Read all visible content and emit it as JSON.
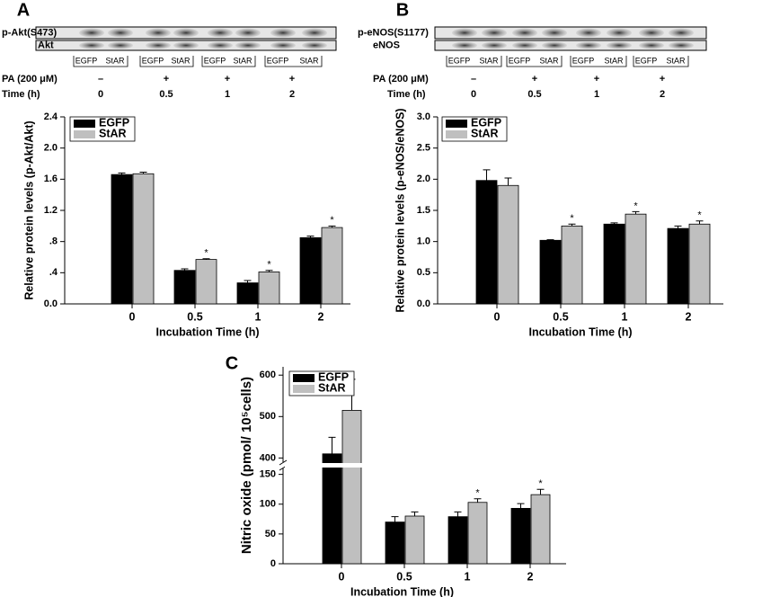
{
  "blots": [
    {
      "panel_label": "A",
      "rows": [
        "p-Akt(S473)",
        "Akt"
      ],
      "lanes": [
        "EGFP",
        "StAR"
      ],
      "pa_label": "PA (200 μM)",
      "time_label": "Time (h)",
      "pa": [
        "–",
        "+",
        "+",
        "+"
      ],
      "times": [
        "0",
        "0.5",
        "1",
        "2"
      ]
    },
    {
      "panel_label": "B",
      "rows": [
        "p-eNOS(S1177)",
        "eNOS"
      ],
      "lanes": [
        "EGFP",
        "StAR"
      ],
      "pa_label": "PA (200 μM)",
      "time_label": "Time (h)",
      "pa": [
        "–",
        "+",
        "+",
        "+"
      ],
      "times": [
        "0",
        "0.5",
        "1",
        "2"
      ]
    }
  ],
  "chart_data": [
    {
      "type": "bar",
      "y_label": "Relative protein levels (p-Akt/Akt)",
      "x_label": "Incubation Time (h)",
      "categories": [
        "0",
        "0.5",
        "1",
        "2"
      ],
      "series": [
        {
          "name": "EGFP",
          "color": "#000000",
          "values": [
            1.66,
            0.43,
            0.27,
            0.85
          ],
          "errors": [
            0.02,
            0.02,
            0.03,
            0.02
          ]
        },
        {
          "name": "StAR",
          "color": "#bfbfbf",
          "values": [
            1.67,
            0.57,
            0.41,
            0.98
          ],
          "errors": [
            0.02,
            0.01,
            0.02,
            0.02
          ],
          "significance": [
            null,
            "*",
            "*",
            "*"
          ]
        }
      ],
      "ylim": [
        0,
        2.4
      ],
      "yticks": [
        {
          "value": 0,
          "label": "0.0"
        },
        {
          "value": 0.4,
          "label": ".4"
        },
        {
          "value": 0.8,
          "label": ".8"
        },
        1.2,
        1.6,
        {
          "value": 2.0,
          "label": "2.0"
        },
        2.4
      ],
      "legend": "upper left"
    },
    {
      "type": "bar",
      "y_label": "Relative protein levels (p-eNOS/eNOS)",
      "x_label": "Incubation Time (h)",
      "categories": [
        "0",
        "0.5",
        "1",
        "2"
      ],
      "series": [
        {
          "name": "EGFP",
          "color": "#000000",
          "values": [
            1.98,
            1.02,
            1.28,
            1.21
          ],
          "errors": [
            0.17,
            0.01,
            0.02,
            0.04
          ]
        },
        {
          "name": "StAR",
          "color": "#bfbfbf",
          "values": [
            1.9,
            1.25,
            1.44,
            1.28
          ],
          "errors": [
            0.12,
            0.03,
            0.04,
            0.05
          ],
          "significance": [
            null,
            "*",
            "*",
            "*"
          ]
        }
      ],
      "ylim": [
        0,
        3.0
      ],
      "yticks": [
        {
          "value": 0,
          "label": "0.0"
        },
        0.5,
        {
          "value": 1.0,
          "label": "1.0"
        },
        1.5,
        {
          "value": 2.0,
          "label": "2.0"
        },
        2.5,
        {
          "value": 3.0,
          "label": "3.0"
        }
      ],
      "legend": "upper left"
    },
    {
      "type": "bar",
      "panel_label": "C",
      "y_label": "Nitric oxide (pmol/ 10⁵cells)",
      "x_label": "Incubation Time (h)",
      "categories": [
        "0",
        "0.5",
        "1",
        "2"
      ],
      "series": [
        {
          "name": "EGFP",
          "color": "#000000",
          "values": [
            410,
            70,
            79,
            93
          ],
          "errors": [
            40,
            9,
            8,
            8
          ]
        },
        {
          "name": "StAR",
          "color": "#bfbfbf",
          "values": [
            515,
            80,
            103,
            116
          ],
          "errors": [
            75,
            7,
            6,
            9
          ],
          "significance": [
            null,
            null,
            "*",
            "*"
          ]
        }
      ],
      "ylim": [
        0,
        620
      ],
      "y_break": [
        160,
        390
      ],
      "yticks": [
        0,
        50,
        100,
        150,
        400,
        500,
        600
      ],
      "legend": "upper left"
    }
  ]
}
